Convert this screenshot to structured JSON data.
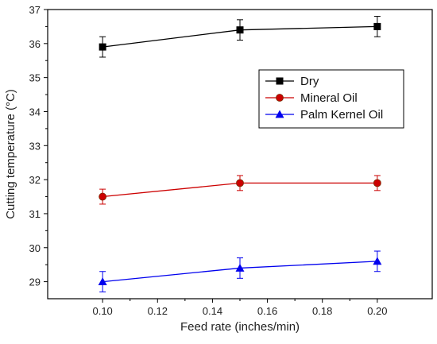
{
  "chart_data": {
    "type": "line",
    "xlabel": "Feed rate (inches/min)",
    "ylabel": "Cutting temperature (°C)",
    "xlim": [
      0.08,
      0.22
    ],
    "ylim": [
      28.5,
      37
    ],
    "xticks": [
      0.1,
      0.12,
      0.14,
      0.16,
      0.18,
      0.2
    ],
    "xtick_labels": [
      "0.10",
      "0.12",
      "0.14",
      "0.16",
      "0.18",
      "0.20"
    ],
    "yticks": [
      29,
      30,
      31,
      32,
      33,
      34,
      35,
      36,
      37
    ],
    "ytick_labels": [
      "29",
      "30",
      "31",
      "32",
      "33",
      "34",
      "35",
      "36",
      "37"
    ],
    "grid": false,
    "legend_position": "upper-right",
    "series": [
      {
        "name": "Dry",
        "color": "#000000",
        "marker": "square",
        "x": [
          0.1,
          0.15,
          0.2
        ],
        "y": [
          35.9,
          36.4,
          36.5
        ],
        "error": [
          0.3,
          0.3,
          0.3
        ]
      },
      {
        "name": "Mineral Oil",
        "color": "#cc0000",
        "marker": "circle",
        "x": [
          0.1,
          0.15,
          0.2
        ],
        "y": [
          31.5,
          31.9,
          31.9
        ],
        "error": [
          0.22,
          0.22,
          0.22
        ]
      },
      {
        "name": "Palm Kernel Oil",
        "color": "#0000ee",
        "marker": "triangle",
        "x": [
          0.1,
          0.15,
          0.2
        ],
        "y": [
          29.0,
          29.4,
          29.6
        ],
        "error": [
          0.3,
          0.3,
          0.3
        ]
      }
    ]
  }
}
